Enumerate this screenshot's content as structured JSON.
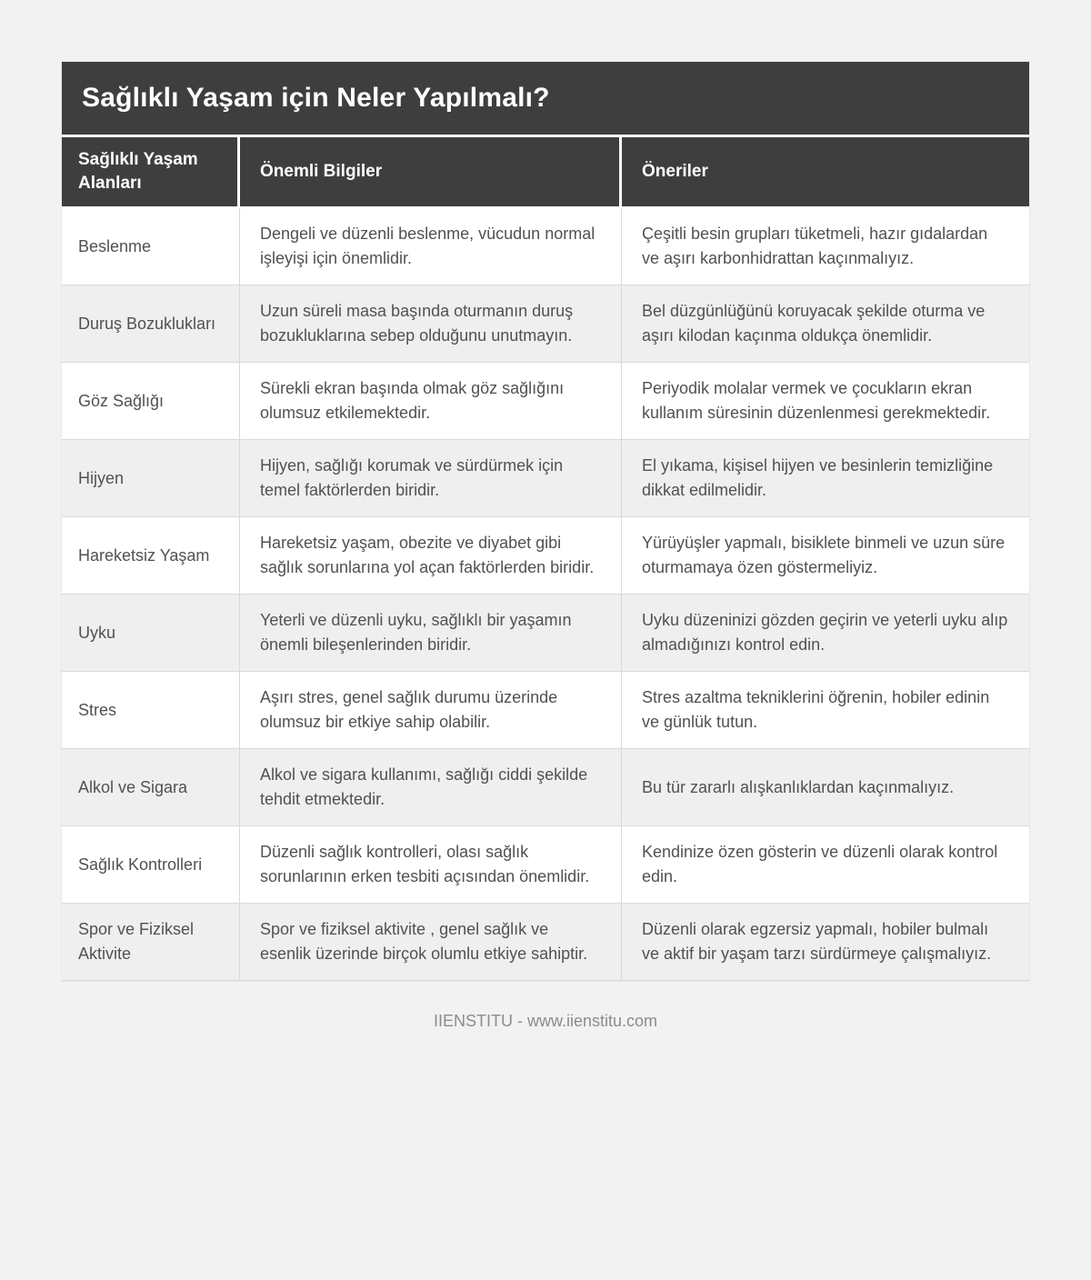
{
  "page": {
    "title": "Sağlıklı Yaşam için Neler Yapılmalı?",
    "footer": "IIENSTITU - www.iienstitu.com"
  },
  "colors": {
    "header_bg": "#3e3e3e",
    "header_text": "#ffffff",
    "row_alt_bg": "#efefef",
    "row_bg": "#ffffff",
    "cell_border": "#d9d9d9",
    "body_text": "#4e5256",
    "page_bg": "#f2f2f2",
    "footer_text": "#8c8c8c"
  },
  "table": {
    "columns": [
      "Sağlıklı Yaşam Alanları",
      "Önemli Bilgiler",
      "Öneriler"
    ],
    "rows": [
      {
        "area": "Beslenme",
        "info": "Dengeli ve düzenli beslenme, vücudun normal işleyişi için önemlidir.",
        "suggestion": "Çeşitli besin grupları tüketmeli, hazır gıdalardan ve aşırı karbonhidrattan kaçınmalıyız."
      },
      {
        "area": "Duruş Bozuklukları",
        "info": "Uzun süreli masa başında oturmanın duruş bozukluklarına sebep olduğunu unutmayın.",
        "suggestion": "Bel düzgünlüğünü koruyacak şekilde oturma ve aşırı kilodan kaçınma oldukça önemlidir."
      },
      {
        "area": "Göz Sağlığı",
        "info": "Sürekli ekran başında olmak göz sağlığını olumsuz etkilemektedir.",
        "suggestion": "Periyodik molalar vermek ve çocukların ekran kullanım süresinin düzenlenmesi gerekmektedir."
      },
      {
        "area": "Hijyen",
        "info": "Hijyen, sağlığı korumak ve sürdürmek için temel faktörlerden biridir.",
        "suggestion": "El yıkama, kişisel hijyen ve besinlerin temizliğine dikkat edilmelidir."
      },
      {
        "area": "Hareketsiz Yaşam",
        "info": "Hareketsiz yaşam, obezite ve diyabet gibi sağlık sorunlarına yol açan faktörlerden biridir.",
        "suggestion": "Yürüyüşler yapmalı, bisiklete binmeli ve uzun süre oturmamaya özen göstermeliyiz."
      },
      {
        "area": "Uyku",
        "info": "Yeterli ve düzenli uyku, sağlıklı bir yaşamın önemli bileşenlerinden biridir.",
        "suggestion": "Uyku düzeninizi gözden geçirin ve yeterli uyku alıp almadığınızı kontrol edin."
      },
      {
        "area": "Stres",
        "info": "Aşırı stres, genel sağlık durumu üzerinde olumsuz bir etkiye sahip olabilir.",
        "suggestion": "Stres azaltma tekniklerini öğrenin, hobiler edinin ve günlük tutun."
      },
      {
        "area": "Alkol ve Sigara",
        "info": "Alkol ve sigara kullanımı, sağlığı ciddi şekilde tehdit etmektedir.",
        "suggestion": "Bu tür zararlı alışkanlıklardan kaçınmalıyız."
      },
      {
        "area": "Sağlık Kontrolleri",
        "info": "Düzenli sağlık kontrolleri, olası sağlık sorunlarının erken tesbiti açısından önemlidir.",
        "suggestion": "Kendinize özen gösterin ve düzenli olarak kontrol edin."
      },
      {
        "area": "Spor ve Fiziksel Aktivite",
        "info": "Spor ve fiziksel aktivite , genel sağlık ve esenlik üzerinde birçok olumlu etkiye sahiptir.",
        "suggestion": "Düzenli olarak egzersiz yapmalı, hobiler bulmalı ve aktif bir yaşam tarzı sürdürmeye çalışmalıyız."
      }
    ]
  }
}
